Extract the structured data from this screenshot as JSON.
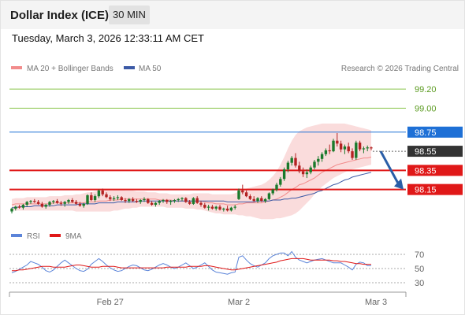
{
  "header": {
    "title": "Dollar Index (ICE)",
    "interval": "30 MIN",
    "datetime": "Tuesday, March 3, 2026 12:33:11 AM CET"
  },
  "legend": {
    "ma20": "MA 20 + Bollinger Bands",
    "ma50": "MA 50",
    "credit": "Research © 2026 Trading Central"
  },
  "rsi_legend": {
    "rsi": "RSI",
    "ma": "9MA"
  },
  "colors": {
    "up": "#1a7a2c",
    "down": "#b32222",
    "band": "#f9d6d6",
    "ma20": "#f28c8c",
    "ma50": "#3c5aa6",
    "resistance": "#8ac44c",
    "pivot": "#1e70d6",
    "support": "#e01818",
    "last_price_box": "#333333",
    "rsi": "#5b84d9",
    "rsi_ma": "#e01818",
    "arrow": "#2a5ea7"
  },
  "chart_data": [
    {
      "type": "candlestick",
      "title": "Dollar Index (ICE)",
      "timeframe": "30 MIN",
      "y_axis_side": "right",
      "ylim": [
        97.9,
        99.3
      ],
      "x_ticks": [
        "Feb 27",
        "Mar 2",
        "Mar 3"
      ],
      "levels": [
        {
          "value": 99.2,
          "label": "99.20",
          "kind": "resistance"
        },
        {
          "value": 99.0,
          "label": "99.00",
          "kind": "resistance"
        },
        {
          "value": 98.75,
          "label": "98.75",
          "kind": "pivot"
        },
        {
          "value": 98.35,
          "label": "98.35",
          "kind": "support"
        },
        {
          "value": 98.15,
          "label": "98.15",
          "kind": "support"
        }
      ],
      "last_price": {
        "value": 98.55,
        "label": "98.55"
      },
      "forecast": {
        "from": 98.55,
        "to": 98.15,
        "direction": "down"
      },
      "overlays": [
        "MA 20",
        "Bollinger Bands",
        "MA 50"
      ],
      "ohlc": [
        [
          97.92,
          97.96,
          97.9,
          97.95
        ],
        [
          97.95,
          97.98,
          97.93,
          97.97
        ],
        [
          97.97,
          97.99,
          97.95,
          97.96
        ],
        [
          97.96,
          98.0,
          97.94,
          97.99
        ],
        [
          97.99,
          98.03,
          97.97,
          98.02
        ],
        [
          98.02,
          98.04,
          98.0,
          98.03
        ],
        [
          98.03,
          98.05,
          98.01,
          98.02
        ],
        [
          98.02,
          98.04,
          97.99,
          98.0
        ],
        [
          98.0,
          98.02,
          97.96,
          97.97
        ],
        [
          97.97,
          98.0,
          97.95,
          97.99
        ],
        [
          97.99,
          98.03,
          97.97,
          98.02
        ],
        [
          98.02,
          98.04,
          98.0,
          98.03
        ],
        [
          98.03,
          98.05,
          98.0,
          98.01
        ],
        [
          98.01,
          98.03,
          97.98,
          98.0
        ],
        [
          98.0,
          98.03,
          97.97,
          98.02
        ],
        [
          98.02,
          98.05,
          98.0,
          98.04
        ],
        [
          98.04,
          98.06,
          98.01,
          98.02
        ],
        [
          98.02,
          98.04,
          97.99,
          98.0
        ],
        [
          98.0,
          98.02,
          97.97,
          97.98
        ],
        [
          97.98,
          98.01,
          97.96,
          98.0
        ],
        [
          98.0,
          98.1,
          97.99,
          98.09
        ],
        [
          98.09,
          98.12,
          98.03,
          98.04
        ],
        [
          98.04,
          98.1,
          98.02,
          98.08
        ],
        [
          98.08,
          98.15,
          98.06,
          98.14
        ],
        [
          98.14,
          98.16,
          98.08,
          98.1
        ],
        [
          98.1,
          98.12,
          98.06,
          98.07
        ],
        [
          98.07,
          98.09,
          98.03,
          98.05
        ],
        [
          98.05,
          98.08,
          98.03,
          98.06
        ],
        [
          98.06,
          98.09,
          98.04,
          98.07
        ],
        [
          98.07,
          98.08,
          98.03,
          98.04
        ],
        [
          98.04,
          98.06,
          98.01,
          98.03
        ],
        [
          98.03,
          98.06,
          98.01,
          98.05
        ],
        [
          98.05,
          98.07,
          98.02,
          98.03
        ],
        [
          98.03,
          98.05,
          98.01,
          98.02
        ],
        [
          98.02,
          98.05,
          98.0,
          98.04
        ],
        [
          98.04,
          98.07,
          98.02,
          98.05
        ],
        [
          98.05,
          98.06,
          98.0,
          98.01
        ],
        [
          98.01,
          98.03,
          97.98,
          97.99
        ],
        [
          97.99,
          98.02,
          97.97,
          98.01
        ],
        [
          98.01,
          98.04,
          97.99,
          98.03
        ],
        [
          98.03,
          98.05,
          98.01,
          98.04
        ],
        [
          98.04,
          98.05,
          98.0,
          98.02
        ],
        [
          98.02,
          98.04,
          97.99,
          98.03
        ],
        [
          98.03,
          98.05,
          98.01,
          98.04
        ],
        [
          98.04,
          98.06,
          98.02,
          98.05
        ],
        [
          98.05,
          98.07,
          98.03,
          98.06
        ],
        [
          98.06,
          98.07,
          98.01,
          98.02
        ],
        [
          98.02,
          98.04,
          97.99,
          98.0
        ],
        [
          98.0,
          98.07,
          97.99,
          98.06
        ],
        [
          98.06,
          98.08,
          98.0,
          98.01
        ],
        [
          98.01,
          98.03,
          97.97,
          97.99
        ],
        [
          97.99,
          98.01,
          97.95,
          97.96
        ],
        [
          97.96,
          97.99,
          97.93,
          97.97
        ],
        [
          97.97,
          97.99,
          97.94,
          97.95
        ],
        [
          97.95,
          97.98,
          97.93,
          97.97
        ],
        [
          97.97,
          97.99,
          97.93,
          97.94
        ],
        [
          97.94,
          97.96,
          97.92,
          97.95
        ],
        [
          97.95,
          97.98,
          97.92,
          97.93
        ],
        [
          97.93,
          97.97,
          97.92,
          97.96
        ],
        [
          97.96,
          97.99,
          97.94,
          97.97
        ],
        [
          98.05,
          98.16,
          98.04,
          98.14
        ],
        [
          98.14,
          98.2,
          98.1,
          98.12
        ],
        [
          98.12,
          98.14,
          98.07,
          98.08
        ],
        [
          98.08,
          98.1,
          98.04,
          98.05
        ],
        [
          98.05,
          98.08,
          98.02,
          98.03
        ],
        [
          98.03,
          98.07,
          98.01,
          98.06
        ],
        [
          98.06,
          98.08,
          98.02,
          98.03
        ],
        [
          98.03,
          98.06,
          98.01,
          98.05
        ],
        [
          98.05,
          98.12,
          98.04,
          98.11
        ],
        [
          98.11,
          98.16,
          98.09,
          98.15
        ],
        [
          98.15,
          98.22,
          98.13,
          98.2
        ],
        [
          98.2,
          98.28,
          98.18,
          98.26
        ],
        [
          98.26,
          98.38,
          98.24,
          98.36
        ],
        [
          98.36,
          98.45,
          98.33,
          98.43
        ],
        [
          98.43,
          98.5,
          98.4,
          98.48
        ],
        [
          98.48,
          98.53,
          98.38,
          98.4
        ],
        [
          98.4,
          98.44,
          98.32,
          98.34
        ],
        [
          98.34,
          98.38,
          98.28,
          98.31
        ],
        [
          98.31,
          98.36,
          98.27,
          98.33
        ],
        [
          98.33,
          98.4,
          98.31,
          98.38
        ],
        [
          98.38,
          98.46,
          98.36,
          98.44
        ],
        [
          98.44,
          98.5,
          98.4,
          98.47
        ],
        [
          98.47,
          98.54,
          98.44,
          98.52
        ],
        [
          98.52,
          98.58,
          98.5,
          98.56
        ],
        [
          98.56,
          98.62,
          98.52,
          98.55
        ],
        [
          98.55,
          98.68,
          98.54,
          98.66
        ],
        [
          98.66,
          98.74,
          98.6,
          98.63
        ],
        [
          98.63,
          98.66,
          98.54,
          98.57
        ],
        [
          98.57,
          98.62,
          98.52,
          98.6
        ],
        [
          98.6,
          98.64,
          98.53,
          98.55
        ],
        [
          98.55,
          98.58,
          98.46,
          98.48
        ],
        [
          98.48,
          98.66,
          98.46,
          98.64
        ],
        [
          98.64,
          98.66,
          98.55,
          98.57
        ],
        [
          98.57,
          98.6,
          98.53,
          98.58
        ],
        [
          98.58,
          98.61,
          98.55,
          98.59
        ],
        [
          98.59,
          98.6,
          98.56,
          98.58
        ]
      ],
      "ma20": [
        97.99,
        98.0,
        98.0,
        98.0,
        98.0,
        98.0,
        98.0,
        98.0,
        98.0,
        98.0,
        98.0,
        98.01,
        98.01,
        98.01,
        98.01,
        98.01,
        98.01,
        98.01,
        98.01,
        98.01,
        98.02,
        98.02,
        98.02,
        98.03,
        98.03,
        98.03,
        98.04,
        98.04,
        98.04,
        98.05,
        98.05,
        98.05,
        98.05,
        98.05,
        98.05,
        98.05,
        98.05,
        98.05,
        98.05,
        98.04,
        98.04,
        98.04,
        98.04,
        98.03,
        98.03,
        98.03,
        98.03,
        98.03,
        98.03,
        98.03,
        98.03,
        98.02,
        98.01,
        98.01,
        98.0,
        98.0,
        98.0,
        97.99,
        97.99,
        97.99,
        98.0,
        98.0,
        98.01,
        98.01,
        98.01,
        98.01,
        98.01,
        98.02,
        98.03,
        98.04,
        98.05,
        98.07,
        98.09,
        98.12,
        98.15,
        98.17,
        98.2,
        98.21,
        98.23,
        98.25,
        98.27,
        98.3,
        98.33,
        98.35,
        98.37,
        98.39,
        98.41,
        98.42,
        98.43,
        98.44,
        98.45,
        98.46,
        98.47,
        98.48,
        98.48,
        98.49
      ],
      "ma50": [
        97.96,
        97.96,
        97.97,
        97.97,
        97.97,
        97.97,
        97.98,
        97.98,
        97.98,
        97.98,
        97.98,
        97.98,
        97.99,
        97.99,
        97.99,
        97.99,
        97.99,
        97.99,
        98.0,
        98.0,
        98.0,
        98.0,
        98.0,
        98.01,
        98.01,
        98.01,
        98.01,
        98.01,
        98.02,
        98.02,
        98.02,
        98.02,
        98.02,
        98.02,
        98.03,
        98.03,
        98.03,
        98.03,
        98.03,
        98.03,
        98.03,
        98.03,
        98.03,
        98.03,
        98.03,
        98.03,
        98.03,
        98.03,
        98.03,
        98.03,
        98.03,
        98.03,
        98.03,
        98.03,
        98.03,
        98.03,
        98.03,
        98.02,
        98.02,
        98.02,
        98.02,
        98.02,
        98.02,
        98.02,
        98.02,
        98.03,
        98.03,
        98.03,
        98.03,
        98.04,
        98.04,
        98.04,
        98.05,
        98.05,
        98.06,
        98.06,
        98.07,
        98.08,
        98.09,
        98.1,
        98.11,
        98.13,
        98.14,
        98.16,
        98.18,
        98.2,
        98.21,
        98.23,
        98.25,
        98.26,
        98.28,
        98.29,
        98.3,
        98.31,
        98.32,
        98.33
      ],
      "bb_upper": [
        98.05,
        98.06,
        98.06,
        98.06,
        98.07,
        98.07,
        98.07,
        98.07,
        98.07,
        98.07,
        98.08,
        98.08,
        98.08,
        98.08,
        98.09,
        98.09,
        98.09,
        98.1,
        98.1,
        98.11,
        98.12,
        98.12,
        98.13,
        98.14,
        98.14,
        98.15,
        98.15,
        98.15,
        98.15,
        98.15,
        98.14,
        98.14,
        98.14,
        98.13,
        98.13,
        98.13,
        98.12,
        98.12,
        98.12,
        98.11,
        98.11,
        98.11,
        98.1,
        98.1,
        98.1,
        98.1,
        98.1,
        98.1,
        98.11,
        98.11,
        98.11,
        98.11,
        98.11,
        98.1,
        98.1,
        98.1,
        98.1,
        98.1,
        98.1,
        98.11,
        98.13,
        98.15,
        98.16,
        98.17,
        98.18,
        98.19,
        98.2,
        98.22,
        98.25,
        98.29,
        98.34,
        98.41,
        98.49,
        98.58,
        98.66,
        98.72,
        98.76,
        98.78,
        98.8,
        98.81,
        98.82,
        98.83,
        98.84,
        98.84,
        98.84,
        98.84,
        98.84,
        98.84,
        98.84,
        98.83,
        98.82,
        98.81,
        98.8,
        98.79,
        98.78,
        98.77
      ],
      "bb_lower": [
        97.93,
        97.93,
        97.93,
        97.93,
        97.93,
        97.93,
        97.93,
        97.93,
        97.93,
        97.93,
        97.93,
        97.93,
        97.93,
        97.93,
        97.93,
        97.93,
        97.93,
        97.92,
        97.92,
        97.92,
        97.92,
        97.92,
        97.92,
        97.92,
        97.92,
        97.92,
        97.92,
        97.93,
        97.93,
        97.94,
        97.95,
        97.95,
        97.96,
        97.96,
        97.97,
        97.97,
        97.97,
        97.97,
        97.97,
        97.97,
        97.97,
        97.96,
        97.96,
        97.96,
        97.96,
        97.96,
        97.95,
        97.95,
        97.95,
        97.94,
        97.94,
        97.93,
        97.92,
        97.91,
        97.9,
        97.9,
        97.89,
        97.89,
        97.89,
        97.89,
        97.88,
        97.88,
        97.87,
        97.87,
        97.86,
        97.85,
        97.84,
        97.84,
        97.84,
        97.84,
        97.85,
        97.85,
        97.86,
        97.87,
        97.88,
        97.9,
        97.93,
        97.97,
        98.01,
        98.05,
        98.1,
        98.14,
        98.18,
        98.21,
        98.24,
        98.27,
        98.29,
        98.31,
        98.33,
        98.35,
        98.36,
        98.37,
        98.38,
        98.39,
        98.4,
        98.41
      ]
    },
    {
      "type": "line",
      "title": "RSI",
      "ylim": [
        20,
        80
      ],
      "y_ticks": [
        30,
        50,
        70
      ],
      "series": [
        {
          "name": "RSI",
          "values": [
            44,
            46,
            49,
            52,
            55,
            60,
            58,
            56,
            52,
            47,
            45,
            48,
            53,
            58,
            62,
            58,
            54,
            50,
            47,
            46,
            49,
            56,
            60,
            64,
            60,
            55,
            51,
            48,
            46,
            47,
            50,
            53,
            55,
            54,
            51,
            48,
            47,
            49,
            52,
            55,
            57,
            55,
            52,
            50,
            52,
            55,
            58,
            54,
            50,
            52,
            55,
            58,
            53,
            48,
            45,
            44,
            43,
            42,
            44,
            45,
            66,
            68,
            62,
            57,
            54,
            52,
            55,
            58,
            64,
            68,
            70,
            72,
            72,
            68,
            74,
            66,
            62,
            60,
            58,
            60,
            62,
            63,
            64,
            62,
            60,
            58,
            58,
            58,
            55,
            52,
            48,
            56,
            59,
            58,
            54,
            54
          ]
        },
        {
          "name": "9MA",
          "values": [
            47,
            47,
            48,
            48,
            49,
            50,
            51,
            52,
            53,
            53,
            53,
            52,
            52,
            52,
            52,
            53,
            54,
            55,
            55,
            54,
            53,
            52,
            52,
            52,
            53,
            53,
            53,
            53,
            52,
            51,
            51,
            51,
            51,
            51,
            51,
            51,
            51,
            51,
            51,
            51,
            51,
            52,
            52,
            52,
            52,
            52,
            52,
            53,
            53,
            53,
            53,
            54,
            54,
            53,
            52,
            51,
            50,
            49,
            48,
            48,
            49,
            50,
            51,
            52,
            53,
            54,
            55,
            56,
            57,
            58,
            59,
            61,
            62,
            63,
            64,
            64,
            64,
            64,
            63,
            62,
            62,
            62,
            62,
            62,
            62,
            61,
            61,
            60,
            60,
            59,
            58,
            57,
            57,
            56,
            56,
            56
          ]
        }
      ]
    }
  ]
}
